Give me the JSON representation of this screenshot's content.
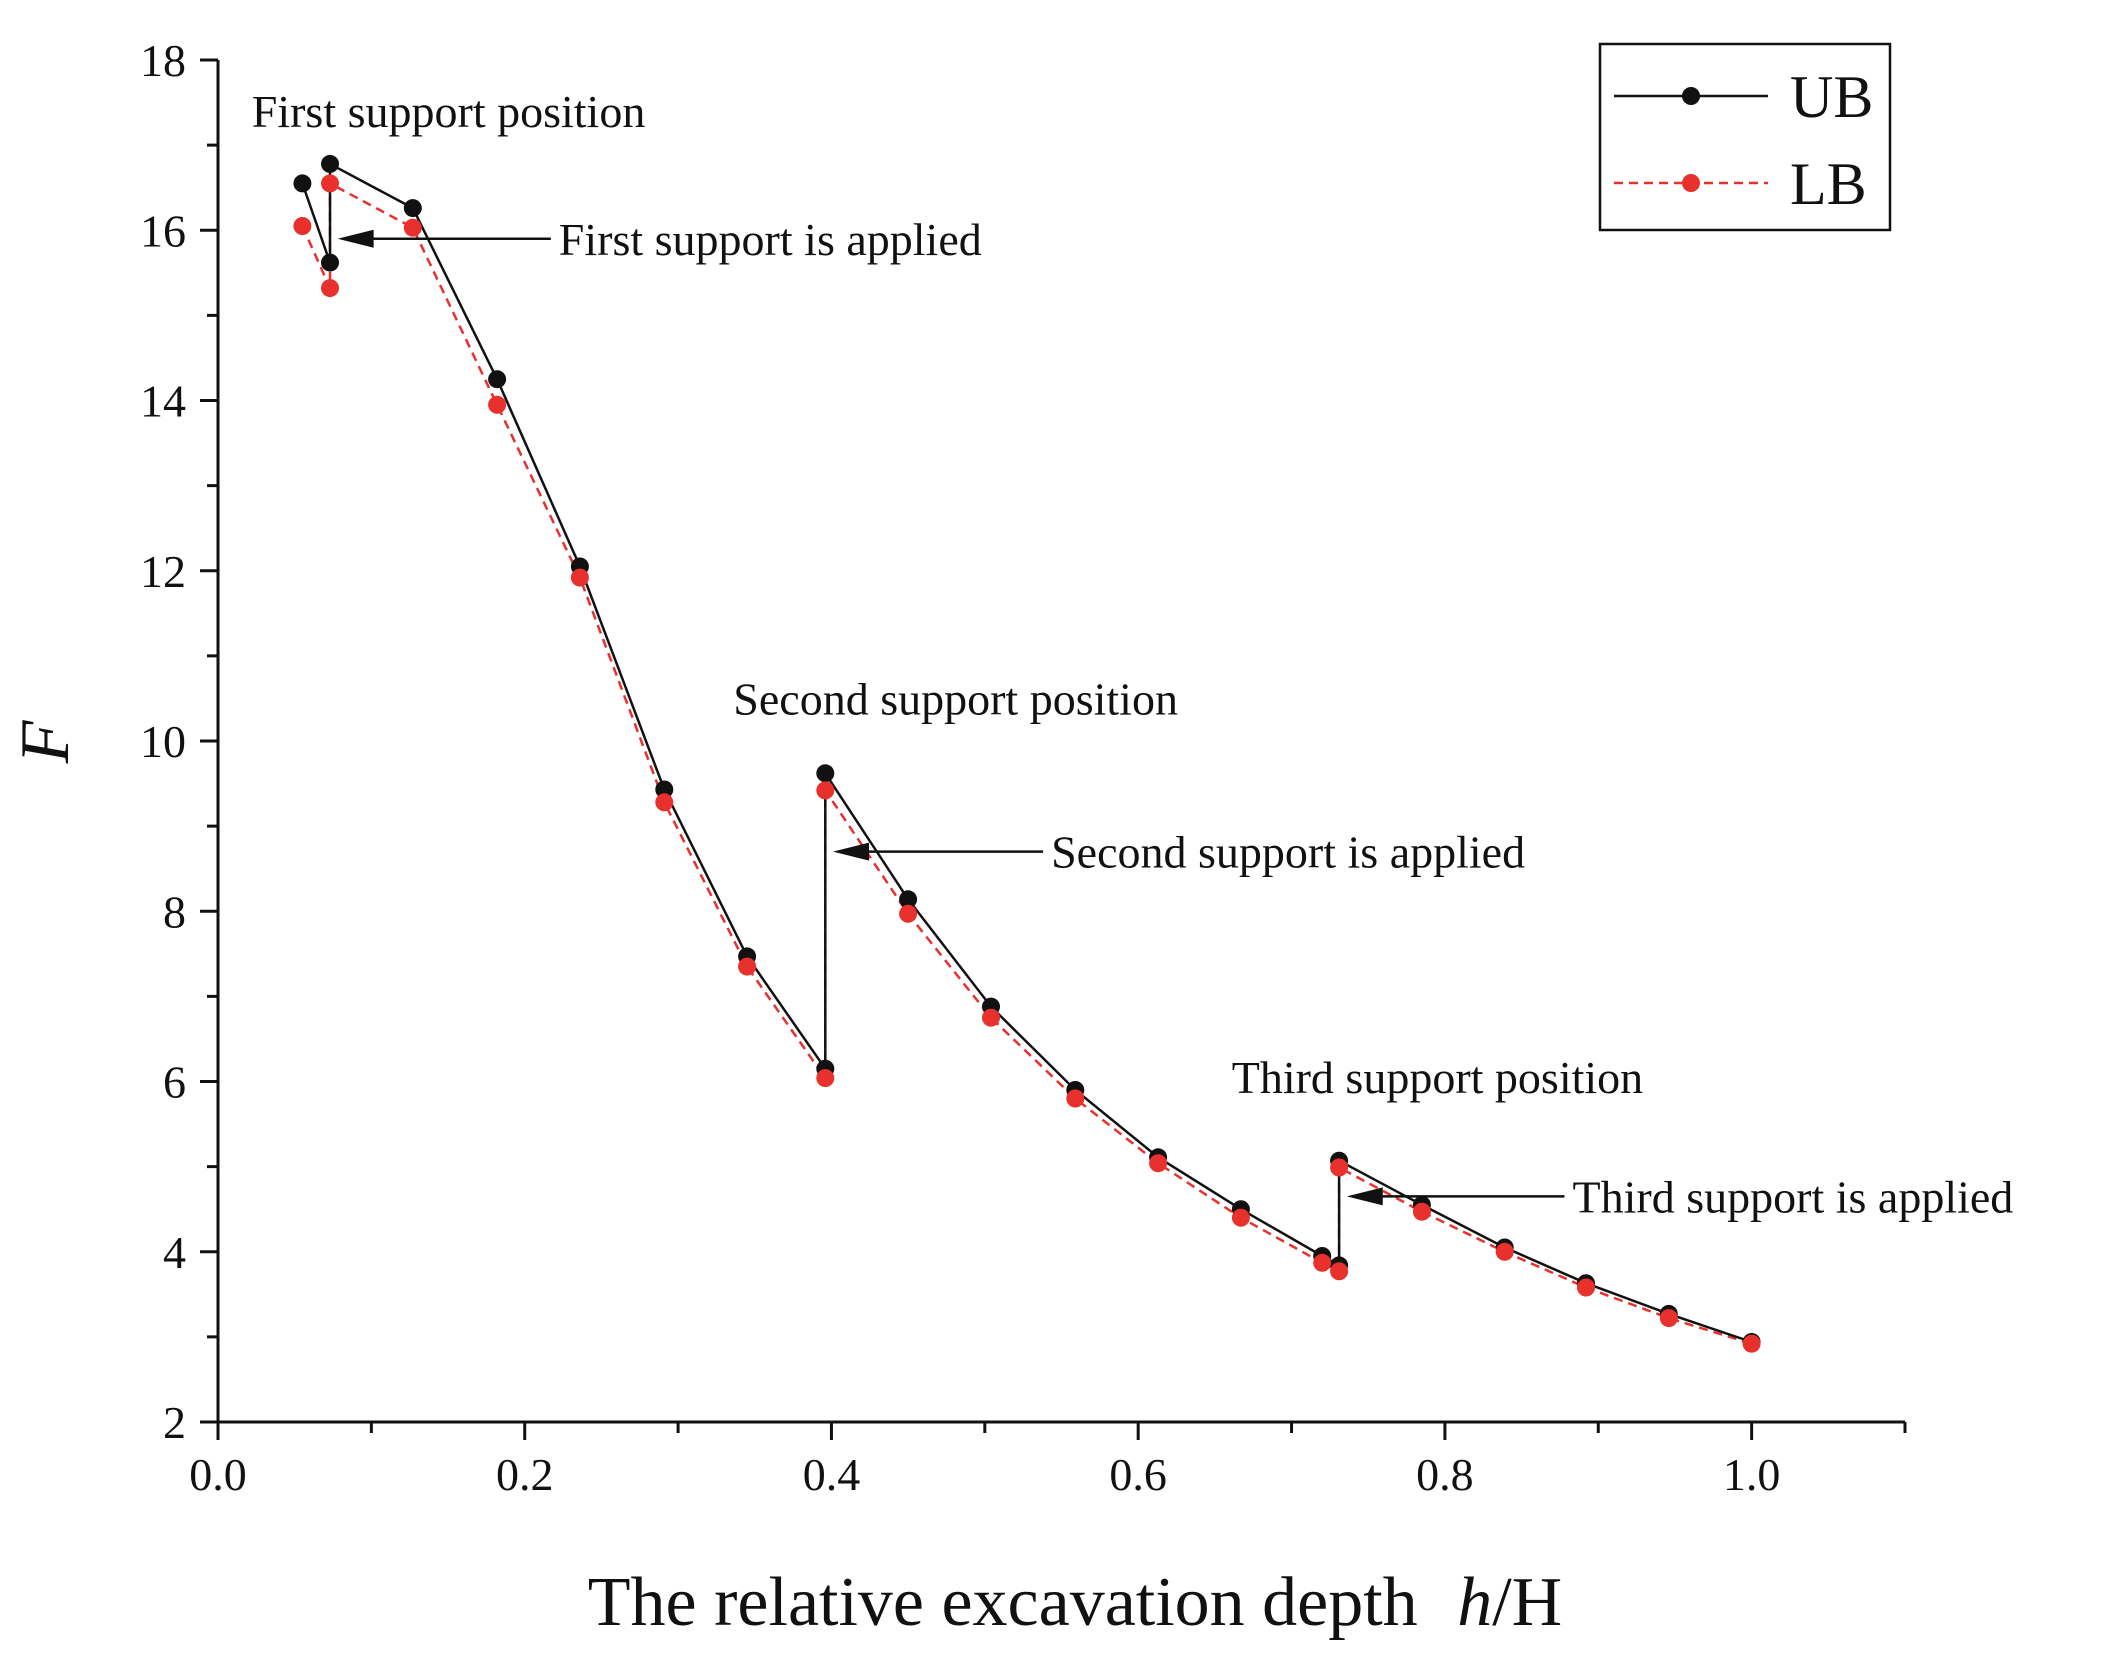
{
  "chart_data": {
    "type": "line",
    "title": "",
    "xlabel": "The relative excavation depth",
    "xlabel_var": "h",
    "xlabel_sep": "/",
    "xlabel_unit": "H",
    "ylabel": "F",
    "xlim": [
      0.0,
      1.1
    ],
    "ylim": [
      2,
      18
    ],
    "grid": false,
    "legend_position": "top-right",
    "x_ticks": [
      0.0,
      0.2,
      0.4,
      0.6,
      0.8,
      1.0
    ],
    "x_tick_labels": [
      "0.0",
      "0.2",
      "0.4",
      "0.6",
      "0.8",
      "1.0"
    ],
    "y_ticks": [
      2,
      4,
      6,
      8,
      10,
      12,
      14,
      16,
      18
    ],
    "y_tick_labels": [
      "2",
      "4",
      "6",
      "8",
      "10",
      "12",
      "14",
      "16",
      "18"
    ],
    "series": [
      {
        "name": "UB",
        "color": "#111111",
        "line_style": "solid",
        "points": [
          [
            0.055,
            16.55
          ],
          [
            0.073,
            15.62
          ],
          [
            0.073,
            16.78
          ],
          [
            0.127,
            16.26
          ],
          [
            0.182,
            14.25
          ],
          [
            0.236,
            12.05
          ],
          [
            0.291,
            9.43
          ],
          [
            0.345,
            7.47
          ],
          [
            0.396,
            6.15
          ],
          [
            0.396,
            9.62
          ],
          [
            0.45,
            8.14
          ],
          [
            0.504,
            6.88
          ],
          [
            0.559,
            5.9
          ],
          [
            0.613,
            5.11
          ],
          [
            0.667,
            4.5
          ],
          [
            0.72,
            3.95
          ],
          [
            0.731,
            3.84
          ],
          [
            0.731,
            5.07
          ],
          [
            0.785,
            4.55
          ],
          [
            0.839,
            4.05
          ],
          [
            0.892,
            3.63
          ],
          [
            0.946,
            3.27
          ],
          [
            1.0,
            2.94
          ]
        ]
      },
      {
        "name": "LB",
        "color": "#e8302d",
        "line_style": "dashed",
        "points": [
          [
            0.055,
            16.05
          ],
          [
            0.073,
            15.32
          ],
          [
            0.073,
            16.55
          ],
          [
            0.127,
            16.03
          ],
          [
            0.182,
            13.95
          ],
          [
            0.236,
            11.92
          ],
          [
            0.291,
            9.28
          ],
          [
            0.345,
            7.35
          ],
          [
            0.396,
            6.04
          ],
          [
            0.396,
            9.42
          ],
          [
            0.45,
            7.97
          ],
          [
            0.504,
            6.75
          ],
          [
            0.559,
            5.8
          ],
          [
            0.613,
            5.04
          ],
          [
            0.667,
            4.4
          ],
          [
            0.72,
            3.87
          ],
          [
            0.731,
            3.77
          ],
          [
            0.731,
            4.99
          ],
          [
            0.785,
            4.47
          ],
          [
            0.839,
            4.0
          ],
          [
            0.892,
            3.58
          ],
          [
            0.946,
            3.22
          ],
          [
            1.0,
            2.92
          ]
        ]
      }
    ],
    "annotations": [
      {
        "text": "First support position",
        "x": 0.022,
        "y": 17.4,
        "arrow_to": null
      },
      {
        "text": "First support is applied",
        "x": 0.23,
        "y": 15.9,
        "arrow_from": [
          0.217,
          15.9
        ],
        "arrow_to": [
          0.078,
          15.9
        ]
      },
      {
        "text": "Second support position",
        "x": 0.336,
        "y": 10.5,
        "arrow_to": null
      },
      {
        "text": "Second support is applied",
        "x": 0.538,
        "y": 8.7,
        "arrow_from": [
          0.538,
          8.7
        ],
        "arrow_to": [
          0.401,
          8.7
        ]
      },
      {
        "text": "Third support position",
        "x": 0.661,
        "y": 6.05,
        "arrow_to": null
      },
      {
        "text": "Third support is applied",
        "x": 0.878,
        "y": 4.65,
        "arrow_from": [
          0.878,
          4.65
        ],
        "arrow_to": [
          0.736,
          4.65
        ]
      }
    ]
  }
}
